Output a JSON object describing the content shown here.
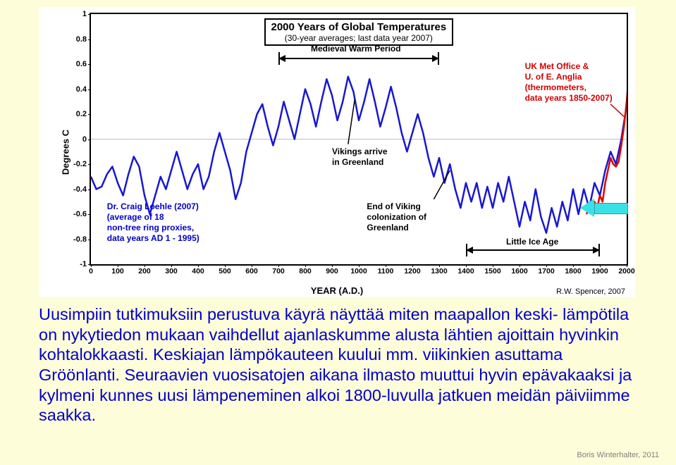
{
  "page": {
    "background_color": "#fdfdda",
    "caption_html": "Uusimpiin tutkimuksiin perustuva käyrä näyttää miten maapallon keski-\nlämpötila on nykytiedon mukaan vaihdellut ajanlaskumme alusta lähtien ajoittain hyvinkin kohtalokkaasti. Keskiajan lämpökauteen kuului mm. viikinkien asuttama Gröönlanti. Seuraavien vuosisatojen aikana ilmasto muuttui hyvin epävakaaksi ja kylmeni kunnes uusi lämpeneminen alkoi 1800-luvulla jatkuen meidän päiviimme saakka.",
    "footer_credit": "Boris Winterhalter, 2011"
  },
  "chart": {
    "type": "line",
    "title": "2000 Years of Global Temperatures",
    "subtitle": "(30-year averages; last data year 2007)",
    "title_fontsize": 15,
    "subtitle_fontsize": 12,
    "x_label": "YEAR (A.D.)",
    "y_label": "Degrees C",
    "credit": "R.W. Spencer, 2007",
    "background_color": "#ffffff",
    "border_color": "#000000",
    "xlim": [
      0,
      2000
    ],
    "ylim": [
      -1,
      1
    ],
    "xtick_step": 100,
    "ytick_step": 0.2,
    "series": [
      {
        "name": "Loehle 2007 proxy reconstruction",
        "color": "#1818d0",
        "line_width": 2.5,
        "data": [
          [
            0,
            -0.3
          ],
          [
            20,
            -0.4
          ],
          [
            40,
            -0.38
          ],
          [
            60,
            -0.28
          ],
          [
            80,
            -0.22
          ],
          [
            100,
            -0.35
          ],
          [
            120,
            -0.45
          ],
          [
            140,
            -0.28
          ],
          [
            160,
            -0.14
          ],
          [
            180,
            -0.22
          ],
          [
            200,
            -0.45
          ],
          [
            220,
            -0.6
          ],
          [
            240,
            -0.45
          ],
          [
            260,
            -0.3
          ],
          [
            280,
            -0.4
          ],
          [
            300,
            -0.25
          ],
          [
            320,
            -0.1
          ],
          [
            340,
            -0.25
          ],
          [
            360,
            -0.4
          ],
          [
            380,
            -0.28
          ],
          [
            400,
            -0.2
          ],
          [
            420,
            -0.4
          ],
          [
            440,
            -0.3
          ],
          [
            460,
            -0.1
          ],
          [
            480,
            0.05
          ],
          [
            500,
            -0.1
          ],
          [
            520,
            -0.25
          ],
          [
            540,
            -0.48
          ],
          [
            560,
            -0.35
          ],
          [
            580,
            -0.1
          ],
          [
            600,
            0.05
          ],
          [
            620,
            0.2
          ],
          [
            640,
            0.28
          ],
          [
            660,
            0.1
          ],
          [
            680,
            -0.05
          ],
          [
            700,
            0.1
          ],
          [
            720,
            0.3
          ],
          [
            740,
            0.15
          ],
          [
            760,
            0.0
          ],
          [
            780,
            0.2
          ],
          [
            800,
            0.4
          ],
          [
            820,
            0.28
          ],
          [
            840,
            0.1
          ],
          [
            860,
            0.3
          ],
          [
            880,
            0.48
          ],
          [
            900,
            0.35
          ],
          [
            920,
            0.15
          ],
          [
            940,
            0.3
          ],
          [
            960,
            0.5
          ],
          [
            980,
            0.38
          ],
          [
            1000,
            0.15
          ],
          [
            1020,
            0.3
          ],
          [
            1040,
            0.48
          ],
          [
            1060,
            0.3
          ],
          [
            1080,
            0.1
          ],
          [
            1100,
            0.25
          ],
          [
            1120,
            0.42
          ],
          [
            1140,
            0.25
          ],
          [
            1160,
            0.05
          ],
          [
            1180,
            -0.1
          ],
          [
            1200,
            0.05
          ],
          [
            1220,
            0.2
          ],
          [
            1240,
            0.05
          ],
          [
            1260,
            -0.15
          ],
          [
            1280,
            -0.3
          ],
          [
            1300,
            -0.15
          ],
          [
            1320,
            -0.35
          ],
          [
            1340,
            -0.2
          ],
          [
            1360,
            -0.4
          ],
          [
            1380,
            -0.55
          ],
          [
            1400,
            -0.35
          ],
          [
            1420,
            -0.5
          ],
          [
            1440,
            -0.35
          ],
          [
            1460,
            -0.55
          ],
          [
            1480,
            -0.38
          ],
          [
            1500,
            -0.55
          ],
          [
            1520,
            -0.35
          ],
          [
            1540,
            -0.5
          ],
          [
            1560,
            -0.3
          ],
          [
            1580,
            -0.5
          ],
          [
            1600,
            -0.7
          ],
          [
            1620,
            -0.5
          ],
          [
            1640,
            -0.65
          ],
          [
            1660,
            -0.4
          ],
          [
            1680,
            -0.62
          ],
          [
            1700,
            -0.75
          ],
          [
            1720,
            -0.55
          ],
          [
            1740,
            -0.7
          ],
          [
            1760,
            -0.5
          ],
          [
            1780,
            -0.65
          ],
          [
            1800,
            -0.4
          ],
          [
            1820,
            -0.6
          ],
          [
            1840,
            -0.4
          ],
          [
            1860,
            -0.55
          ],
          [
            1880,
            -0.35
          ],
          [
            1900,
            -0.45
          ],
          [
            1920,
            -0.25
          ],
          [
            1940,
            -0.1
          ],
          [
            1960,
            -0.2
          ],
          [
            1980,
            0.0
          ],
          [
            1995,
            0.2
          ]
        ]
      },
      {
        "name": "UK Met Office / UEA thermometers 1850-2007",
        "color": "#e00000",
        "line_width": 2.5,
        "data": [
          [
            1850,
            -0.6
          ],
          [
            1860,
            -0.55
          ],
          [
            1870,
            -0.58
          ],
          [
            1880,
            -0.5
          ],
          [
            1890,
            -0.55
          ],
          [
            1900,
            -0.45
          ],
          [
            1910,
            -0.5
          ],
          [
            1920,
            -0.35
          ],
          [
            1930,
            -0.25
          ],
          [
            1940,
            -0.15
          ],
          [
            1950,
            -0.2
          ],
          [
            1960,
            -0.22
          ],
          [
            1970,
            -0.18
          ],
          [
            1980,
            -0.05
          ],
          [
            1990,
            0.1
          ],
          [
            2000,
            0.3
          ],
          [
            2007,
            0.5
          ]
        ]
      }
    ],
    "annotations": {
      "medieval_label": "Medieval Warm Period",
      "medieval_range": [
        700,
        1300
      ],
      "little_ice_label": "Little Ice Age",
      "little_ice_range": [
        1400,
        1900
      ],
      "vikings_arrive": "Vikings arrive\nin Greenland",
      "vikings_end": "End of Viking\ncolonization of\nGreenland",
      "loehle_box": "Dr. Craig Loehle (2007)\n(average of 18\nnon-tree ring proxies,\ndata years AD 1 - 1995)",
      "ukmo_box": "UK Met Office &\nU. of E. Anglia\n(thermometers,\ndata years 1850-2007)"
    }
  }
}
